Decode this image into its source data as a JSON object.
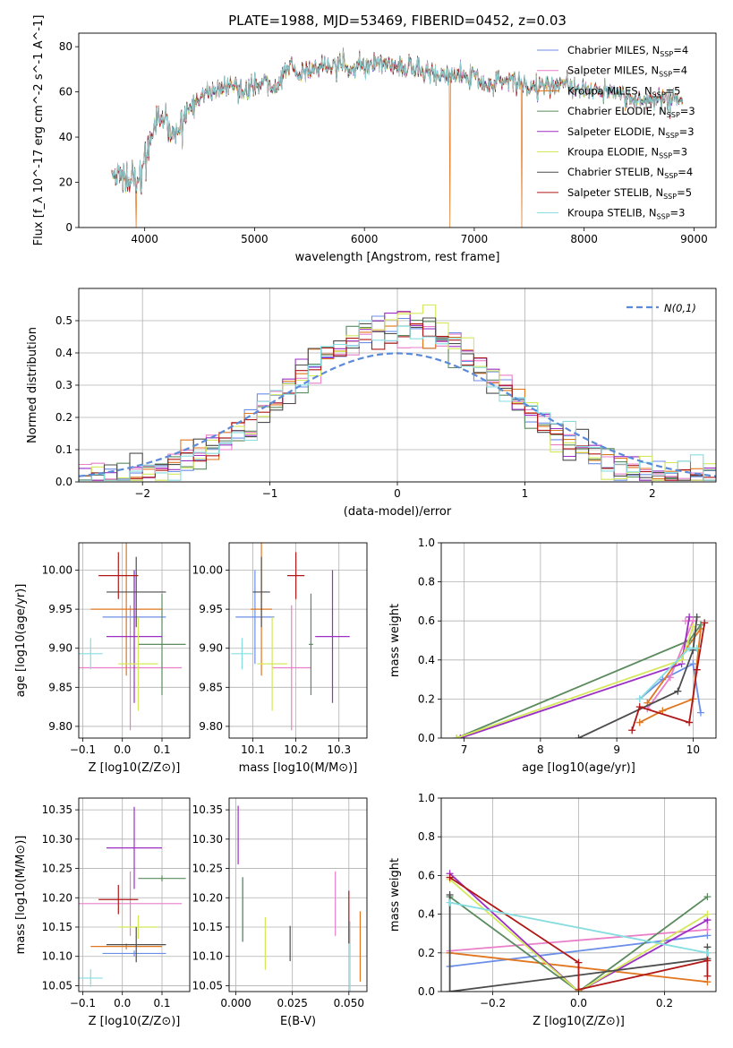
{
  "title": "PLATE=1988, MJD=53469, FIBERID=0452, z=0.03",
  "models": [
    {
      "name": "Chabrier MILES",
      "nssp": 4,
      "color": "#6b8ee8"
    },
    {
      "name": "Salpeter MILES",
      "nssp": 4,
      "color": "#e97fc8"
    },
    {
      "name": "Kroupa MILES",
      "nssp": 5,
      "color": "#e0761f"
    },
    {
      "name": "Chabrier ELODIE",
      "nssp": 3,
      "color": "#5b8b5e"
    },
    {
      "name": "Salpeter ELODIE",
      "nssp": 3,
      "color": "#9b2fc4"
    },
    {
      "name": "Kroupa ELODIE",
      "nssp": 3,
      "color": "#d4e85a"
    },
    {
      "name": "Chabrier STELIB",
      "nssp": 4,
      "color": "#4d4d4d"
    },
    {
      "name": "Salpeter STELIB",
      "nssp": 5,
      "color": "#b01818"
    },
    {
      "name": "Kroupa STELIB",
      "nssp": 3,
      "color": "#86dde0"
    }
  ],
  "chart_data": [
    {
      "id": "spectrum",
      "type": "line",
      "xlabel": "wavelength [Angstrom, rest frame]",
      "ylabel": "Flux [f_λ 10^-17 erg cm^-2 s^-1 A^-1]",
      "xlim": [
        3400,
        9200
      ],
      "ylim": [
        0,
        86
      ],
      "xticks": [
        4000,
        5000,
        6000,
        7000,
        8000,
        9000
      ],
      "yticks": [
        0,
        20,
        40,
        60,
        80
      ],
      "grid": false,
      "legend_loc": "right",
      "x_range": [
        3700,
        8900
      ],
      "envelope": [
        [
          3700,
          25
        ],
        [
          3800,
          22
        ],
        [
          3900,
          24
        ],
        [
          3950,
          18
        ],
        [
          4000,
          30
        ],
        [
          4100,
          45
        ],
        [
          4200,
          48
        ],
        [
          4300,
          40
        ],
        [
          4400,
          52
        ],
        [
          4500,
          58
        ],
        [
          4600,
          60
        ],
        [
          4700,
          62
        ],
        [
          4800,
          62
        ],
        [
          4900,
          60
        ],
        [
          5000,
          62
        ],
        [
          5100,
          65
        ],
        [
          5200,
          62
        ],
        [
          5300,
          72
        ],
        [
          5400,
          68
        ],
        [
          5500,
          70
        ],
        [
          5600,
          70
        ],
        [
          5700,
          71
        ],
        [
          5800,
          72
        ],
        [
          5900,
          70
        ],
        [
          6000,
          72
        ],
        [
          6100,
          73
        ],
        [
          6200,
          72
        ],
        [
          6300,
          70
        ],
        [
          6400,
          70
        ],
        [
          6500,
          70
        ],
        [
          6600,
          68
        ],
        [
          6700,
          67
        ],
        [
          6800,
          67
        ],
        [
          6900,
          67
        ],
        [
          7000,
          67
        ],
        [
          7100,
          62
        ],
        [
          7200,
          66
        ],
        [
          7300,
          65
        ],
        [
          7400,
          65
        ],
        [
          7500,
          62
        ],
        [
          7600,
          62
        ],
        [
          7700,
          63
        ],
        [
          7800,
          64
        ],
        [
          7900,
          60
        ],
        [
          8000,
          61
        ],
        [
          8200,
          60
        ],
        [
          8400,
          58
        ],
        [
          8600,
          56
        ],
        [
          8800,
          57
        ],
        [
          8900,
          55
        ]
      ],
      "dropouts": [
        {
          "x": 3920,
          "color": "#e0761f"
        },
        {
          "x": 6780,
          "color": "#e0761f"
        },
        {
          "x": 7430,
          "color": "#e0761f"
        }
      ]
    },
    {
      "id": "residuals",
      "type": "area",
      "xlabel": "(data-model)/error",
      "ylabel": "Normed distribution",
      "xlim": [
        -2.5,
        2.5
      ],
      "ylim": [
        0,
        0.6
      ],
      "xticks": [
        -2,
        -1,
        0,
        1,
        2
      ],
      "yticks": [
        0.0,
        0.1,
        0.2,
        0.3,
        0.4,
        0.5
      ],
      "grid": true,
      "legend_loc": "top-right",
      "reference": {
        "label": "N(0,1)",
        "color": "#5b8bd8"
      },
      "bin_width": 0.1
    },
    {
      "id": "age-vs-Z",
      "type": "scatter",
      "xlabel": "Z [log10(Z/Z⊙)]",
      "ylabel": "age  [log10(age/yr)]",
      "xlim": [
        -0.11,
        0.17
      ],
      "ylim": [
        9.785,
        10.035
      ],
      "xticks": [
        -0.1,
        0.0,
        0.1
      ],
      "yticks": [
        9.8,
        9.85,
        9.9,
        9.95,
        10.0
      ],
      "grid": true,
      "points": [
        {
          "x": 0.03,
          "xerr": 0.08,
          "y": 9.94,
          "yerr": 0.06
        },
        {
          "x": 0.02,
          "xerr": 0.13,
          "y": 9.875,
          "yerr": 0.08
        },
        {
          "x": 0.01,
          "xerr": 0.09,
          "y": 9.95,
          "yerr": 0.085
        },
        {
          "x": 0.1,
          "xerr": 0.06,
          "y": 9.905,
          "yerr": 0.065
        },
        {
          "x": 0.03,
          "xerr": 0.07,
          "y": 9.915,
          "yerr": 0.085
        },
        {
          "x": 0.04,
          "xerr": 0.05,
          "y": 9.88,
          "yerr": 0.06
        },
        {
          "x": 0.035,
          "xerr": 0.075,
          "y": 9.972,
          "yerr": 0.045
        },
        {
          "x": -0.01,
          "xerr": 0.05,
          "y": 9.993,
          "yerr": 0.03
        },
        {
          "x": -0.08,
          "xerr": 0.03,
          "y": 9.893,
          "yerr": 0.02
        }
      ]
    },
    {
      "id": "age-vs-mass",
      "type": "scatter",
      "xlabel": "mass [log10(M/M⊙)]",
      "ylabel": "",
      "xlim": [
        10.045,
        10.365
      ],
      "ylim": [
        9.785,
        10.035
      ],
      "xticks": [
        10.1,
        10.2,
        10.3
      ],
      "yticks": [
        9.8,
        9.85,
        9.9,
        9.95,
        10.0
      ],
      "grid": true,
      "points": [
        {
          "x": 10.105,
          "xerr": 0.045,
          "y": 9.94,
          "yerr": 0.06
        },
        {
          "x": 10.19,
          "xerr": 0.045,
          "y": 9.875,
          "yerr": 0.08
        },
        {
          "x": 10.12,
          "xerr": 0.025,
          "y": 9.95,
          "yerr": 0.085
        },
        {
          "x": 10.235,
          "xerr": 0.005,
          "y": 9.905,
          "yerr": 0.065
        },
        {
          "x": 10.285,
          "xerr": 0.04,
          "y": 9.915,
          "yerr": 0.085
        },
        {
          "x": 10.145,
          "xerr": 0.035,
          "y": 9.88,
          "yerr": 0.06
        },
        {
          "x": 10.12,
          "xerr": 0.02,
          "y": 9.972,
          "yerr": 0.045
        },
        {
          "x": 10.2,
          "xerr": 0.02,
          "y": 9.993,
          "yerr": 0.03
        },
        {
          "x": 10.075,
          "xerr": 0.025,
          "y": 9.893,
          "yerr": 0.02
        }
      ]
    },
    {
      "id": "weight-vs-age",
      "type": "line",
      "xlabel": "age  [log10(age/yr)]",
      "ylabel": "mass weight",
      "xlim": [
        6.7,
        10.3
      ],
      "ylim": [
        0,
        1.0
      ],
      "xticks": [
        7,
        8,
        9,
        10
      ],
      "yticks": [
        0.0,
        0.2,
        0.4,
        0.6,
        0.8,
        1.0
      ],
      "grid": true,
      "series": [
        {
          "points": [
            [
              9.3,
              0.2
            ],
            [
              9.6,
              0.3
            ],
            [
              10.0,
              0.38
            ],
            [
              10.1,
              0.13
            ]
          ]
        },
        {
          "points": [
            [
              9.4,
              0.15
            ],
            [
              9.7,
              0.31
            ],
            [
              10.0,
              0.6
            ],
            [
              9.9,
              0.6
            ]
          ]
        },
        {
          "points": [
            [
              9.3,
              0.08
            ],
            [
              9.6,
              0.14
            ],
            [
              10.0,
              0.2
            ],
            [
              10.1,
              0.56
            ],
            [
              9.4,
              0.18
            ]
          ]
        },
        {
          "points": [
            [
              6.9,
              0.0
            ],
            [
              9.95,
              0.5
            ],
            [
              10.1,
              0.58
            ]
          ]
        },
        {
          "points": [
            [
              6.95,
              0.0
            ],
            [
              9.85,
              0.38
            ],
            [
              9.95,
              0.62
            ]
          ]
        },
        {
          "points": [
            [
              6.9,
              0.0
            ],
            [
              9.85,
              0.4
            ],
            [
              10.0,
              0.57
            ]
          ]
        },
        {
          "points": [
            [
              8.5,
              0.0
            ],
            [
              9.8,
              0.24
            ],
            [
              10.0,
              0.45
            ],
            [
              10.05,
              0.62
            ]
          ]
        },
        {
          "points": [
            [
              9.2,
              0.04
            ],
            [
              9.3,
              0.16
            ],
            [
              9.95,
              0.08
            ],
            [
              10.05,
              0.35
            ],
            [
              10.15,
              0.59
            ]
          ]
        },
        {
          "points": [
            [
              9.3,
              0.2
            ],
            [
              9.95,
              0.46
            ],
            [
              10.05,
              0.46
            ]
          ]
        }
      ]
    },
    {
      "id": "mass-vs-Z",
      "type": "scatter",
      "xlabel": "Z [log10(Z/Z⊙)]",
      "ylabel": "mass [log10(M/M⊙)]",
      "xlim": [
        -0.11,
        0.17
      ],
      "ylim": [
        10.04,
        10.37
      ],
      "xticks": [
        -0.1,
        0.0,
        0.1
      ],
      "yticks": [
        10.05,
        10.1,
        10.15,
        10.2,
        10.25,
        10.3,
        10.35
      ],
      "grid": true,
      "points": [
        {
          "x": 0.03,
          "xerr": 0.08,
          "y": 10.105,
          "yerr": 0.005
        },
        {
          "x": 0.02,
          "xerr": 0.13,
          "y": 10.19,
          "yerr": 0.055
        },
        {
          "x": 0.01,
          "xerr": 0.09,
          "y": 10.117,
          "yerr": 0.005
        },
        {
          "x": 0.1,
          "xerr": 0.06,
          "y": 10.233,
          "yerr": 0.005
        },
        {
          "x": 0.03,
          "xerr": 0.07,
          "y": 10.285,
          "yerr": 0.07
        },
        {
          "x": 0.04,
          "xerr": 0.05,
          "y": 10.15,
          "yerr": 0.02
        },
        {
          "x": 0.035,
          "xerr": 0.075,
          "y": 10.12,
          "yerr": 0.03
        },
        {
          "x": -0.01,
          "xerr": 0.05,
          "y": 10.197,
          "yerr": 0.025
        },
        {
          "x": -0.08,
          "xerr": 0.03,
          "y": 10.063,
          "yerr": 0.015
        }
      ]
    },
    {
      "id": "mass-vs-ebv",
      "type": "scatter",
      "xlabel": "E(B-V)",
      "ylabel": "",
      "xlim": [
        -0.003,
        0.058
      ],
      "ylim": [
        10.04,
        10.37
      ],
      "xticks": [
        0.0,
        0.025,
        0.05
      ],
      "yticks": [
        10.05,
        10.1,
        10.15,
        10.2,
        10.25,
        10.3,
        10.35
      ],
      "grid": true,
      "points": [
        {
          "x": 0.003,
          "y": 10.18,
          "yerr": 0.055
        },
        {
          "x": 0.044,
          "y": 10.19,
          "yerr": 0.055
        },
        {
          "x": 0.055,
          "y": 10.117,
          "yerr": 0.06
        },
        {
          "x": 0.003,
          "y": 10.18,
          "yerr": 0.055
        },
        {
          "x": 0.001,
          "y": 10.307,
          "yerr": 0.05
        },
        {
          "x": 0.013,
          "y": 10.122,
          "yerr": 0.045
        },
        {
          "x": 0.024,
          "y": 10.122,
          "yerr": 0.03
        },
        {
          "x": 0.05,
          "y": 10.167,
          "yerr": 0.045
        },
        {
          "x": 0.0505,
          "y": 10.1,
          "yerr": 0.06
        }
      ]
    },
    {
      "id": "weight-vs-Z",
      "type": "line",
      "xlabel": "Z [log10(Z/Z⊙)]",
      "ylabel": "mass weight",
      "xlim": [
        -0.32,
        0.32
      ],
      "ylim": [
        0,
        1.0
      ],
      "xticks": [
        -0.2,
        0.0,
        0.2
      ],
      "yticks": [
        0.0,
        0.2,
        0.4,
        0.6,
        0.8,
        1.0
      ],
      "grid": true,
      "series": [
        {
          "points": [
            [
              -0.3,
              0.13
            ],
            [
              0.3,
              0.29
            ]
          ]
        },
        {
          "points": [
            [
              -0.3,
              0.21
            ],
            [
              0.3,
              0.32
            ],
            [
              0.3,
              0.37
            ]
          ]
        },
        {
          "points": [
            [
              -0.3,
              0.2
            ],
            [
              0.3,
              0.05
            ]
          ]
        },
        {
          "points": [
            [
              -0.3,
              0.49
            ],
            [
              0.0,
              0.0
            ],
            [
              0.3,
              0.49
            ]
          ]
        },
        {
          "points": [
            [
              -0.3,
              0.61
            ],
            [
              0.0,
              0.0
            ],
            [
              0.3,
              0.37
            ]
          ]
        },
        {
          "points": [
            [
              -0.3,
              0.58
            ],
            [
              0.0,
              0.0
            ],
            [
              0.3,
              0.4
            ]
          ]
        },
        {
          "points": [
            [
              -0.3,
              0.5
            ],
            [
              -0.3,
              0.0
            ],
            [
              0.3,
              0.17
            ],
            [
              0.3,
              0.23
            ]
          ]
        },
        {
          "points": [
            [
              -0.3,
              0.59
            ],
            [
              0.0,
              0.15
            ],
            [
              0.0,
              0.01
            ],
            [
              0.3,
              0.16
            ],
            [
              0.3,
              0.08
            ]
          ]
        },
        {
          "points": [
            [
              -0.3,
              0.46
            ],
            [
              0.3,
              0.2
            ]
          ]
        }
      ]
    }
  ]
}
